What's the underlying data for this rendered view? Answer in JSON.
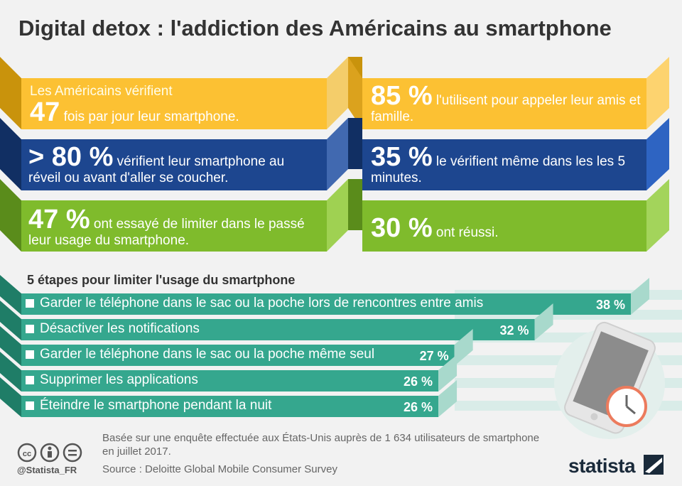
{
  "title": "Digital detox : l'addiction des Américains au smartphone",
  "stats": {
    "left1": {
      "pre": "Les Américains vérifient",
      "big": "47",
      "post": "fois par jour leur smartphone."
    },
    "right1": {
      "big": "85 %",
      "post": "l'utilisent pour appeler leur amis et famille."
    },
    "left2": {
      "big": "> 80 %",
      "post": "vérifient leur smartphone au réveil ou avant d'aller se coucher."
    },
    "right2": {
      "big": "35 %",
      "post": "le vérifient même dans les les 5 minutes."
    },
    "left3": {
      "big": "47 %",
      "post": "ont essayé de limiter dans le passé leur usage du smartphone."
    },
    "right3": {
      "big": "30 %",
      "post": "ont réussi."
    }
  },
  "colors": {
    "yellow": "#fcc133",
    "blue": "#1d468f",
    "green": "#7fbb2c",
    "teal": "#35a78e"
  },
  "chart_data": {
    "type": "bar",
    "title": "5 étapes pour limiter l'usage du smartphone",
    "categories": [
      "Garder le téléphone dans le sac ou la poche lors de rencontres entre amis",
      "Désactiver les notifications",
      "Garder le téléphone dans le sac ou la poche même seul",
      "Supprimer les applications",
      "Éteindre le smartphone pendant la nuit"
    ],
    "values": [
      38,
      32,
      27,
      26,
      26
    ],
    "value_labels": [
      "38 %",
      "32 %",
      "27 %",
      "26 %",
      "26 %"
    ],
    "xlim": [
      0,
      40
    ]
  },
  "footer": {
    "note": "Basée sur une enquête effectuée aux États-Unis auprès de 1 634 utilisateurs de smartphone en juillet 2017.",
    "source": "Source : Deloitte Global Mobile Consumer Survey",
    "handle": "@Statista_FR",
    "brand": "statista"
  },
  "icons": [
    "cc-icon",
    "person-icon",
    "equals-icon",
    "smartphone-icon",
    "clock-icon",
    "statista-logo-icon"
  ]
}
